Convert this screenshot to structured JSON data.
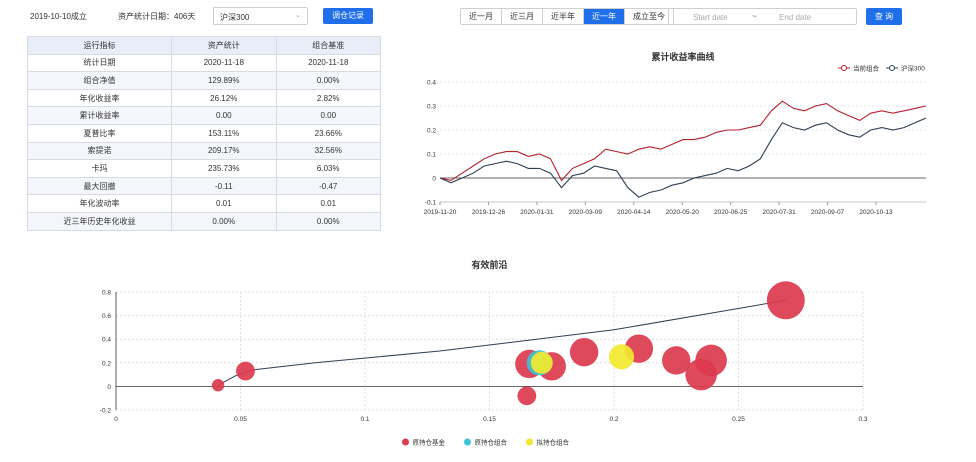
{
  "header": {
    "established": "2019-10-10成立",
    "stat_days": "资产统计日期：406天",
    "benchmark_select": "沪深300",
    "adjust_button": "调仓记录",
    "ranges": [
      "近一月",
      "近三月",
      "近半年",
      "近一年",
      "成立至今"
    ],
    "active_range": "近一年",
    "start_placeholder": "Start date",
    "separator": "~",
    "end_placeholder": "End date",
    "query_button": "查 询"
  },
  "metrics_table": {
    "headers": [
      "运行指标",
      "资产统计",
      "组合基准"
    ],
    "rows": [
      [
        "统计日期",
        "2020-11-18",
        "2020-11-18"
      ],
      [
        "组合净值",
        "129.89%",
        "0.00%"
      ],
      [
        "年化收益率",
        "26.12%",
        "2.82%"
      ],
      [
        "累计收益率",
        "0.00",
        "0.00"
      ],
      [
        "夏普比率",
        "153.11%",
        "23.66%"
      ],
      [
        "索提诺",
        "209.17%",
        "32.56%"
      ],
      [
        "卡玛",
        "235.73%",
        "6.03%"
      ],
      [
        "最大回撤",
        "-0.11",
        "-0.47"
      ],
      [
        "年化波动率",
        "0.01",
        "0.01"
      ],
      [
        "近三年历史年化收益",
        "0.00%",
        "0.00%"
      ]
    ]
  },
  "colors": {
    "accent": "#1f6feb",
    "portfolio": "#b5202e",
    "benchmark": "#2e3f55",
    "bubble_red": "#dc3a4e",
    "bubble_cyan": "#3cc3d8",
    "bubble_yellow": "#f2e92e"
  },
  "chart_data": [
    {
      "type": "line",
      "title": "累计收益率曲线",
      "x_ticks": [
        "2019-11-20",
        "2019-12-26",
        "2020-01-31",
        "2020-03-09",
        "2020-04-14",
        "2020-05-20",
        "2020-06-25",
        "2020-07-31",
        "2020-09-07",
        "2020-10-13"
      ],
      "ylim": [
        -0.1,
        0.4
      ],
      "y_ticks": [
        -0.1,
        0,
        0.1,
        0.2,
        0.3,
        0.4
      ],
      "legend_position": "top-right",
      "series": [
        {
          "name": "当前组合",
          "values": [
            0,
            -0.01,
            0.02,
            0.05,
            0.08,
            0.1,
            0.11,
            0.11,
            0.09,
            0.1,
            0.08,
            -0.01,
            0.04,
            0.06,
            0.08,
            0.12,
            0.11,
            0.1,
            0.12,
            0.13,
            0.12,
            0.14,
            0.16,
            0.16,
            0.17,
            0.19,
            0.2,
            0.2,
            0.21,
            0.22,
            0.28,
            0.32,
            0.29,
            0.28,
            0.3,
            0.31,
            0.28,
            0.26,
            0.24,
            0.27,
            0.28,
            0.27,
            0.28,
            0.29,
            0.3
          ]
        },
        {
          "name": "沪深300",
          "values": [
            0,
            -0.02,
            0,
            0.02,
            0.05,
            0.06,
            0.07,
            0.06,
            0.04,
            0.04,
            0.02,
            -0.04,
            0.01,
            0.02,
            0.05,
            0.04,
            0.03,
            -0.04,
            -0.08,
            -0.06,
            -0.05,
            -0.03,
            -0.02,
            0,
            0.01,
            0.02,
            0.04,
            0.03,
            0.05,
            0.08,
            0.16,
            0.23,
            0.21,
            0.2,
            0.22,
            0.23,
            0.2,
            0.18,
            0.17,
            0.2,
            0.21,
            0.2,
            0.21,
            0.23,
            0.25
          ]
        }
      ]
    },
    {
      "type": "scatter",
      "title": "有效前沿",
      "xlim": [
        0,
        0.3
      ],
      "ylim": [
        -0.2,
        0.8
      ],
      "x_ticks": [
        0,
        0.05,
        0.1,
        0.15,
        0.2,
        0.25,
        0.3
      ],
      "y_ticks": [
        -0.2,
        0,
        0.2,
        0.4,
        0.6,
        0.8
      ],
      "legend_position": "bottom",
      "frontier": [
        [
          0.041,
          0.01
        ],
        [
          0.048,
          0.09
        ],
        [
          0.055,
          0.14
        ],
        [
          0.08,
          0.2
        ],
        [
          0.13,
          0.3
        ],
        [
          0.2,
          0.48
        ],
        [
          0.269,
          0.73
        ]
      ],
      "series": [
        {
          "name": "原持仓基金",
          "points": [
            [
              0.041,
              0.01,
              1
            ],
            [
              0.052,
              0.13,
              2
            ],
            [
              0.165,
              -0.08,
              2
            ],
            [
              0.166,
              0.19,
              3.5
            ],
            [
              0.175,
              0.17,
              3.5
            ],
            [
              0.188,
              0.29,
              3.5
            ],
            [
              0.21,
              0.32,
              3.5
            ],
            [
              0.225,
              0.22,
              3.5
            ],
            [
              0.235,
              0.1,
              4
            ],
            [
              0.239,
              0.22,
              4
            ],
            [
              0.269,
              0.73,
              5
            ]
          ]
        },
        {
          "name": "原持仓组合",
          "points": [
            [
              0.17,
              0.2,
              3
            ]
          ]
        },
        {
          "name": "拟持仓组合",
          "points": [
            [
              0.171,
              0.2,
              2.5
            ],
            [
              0.203,
              0.25,
              3
            ]
          ]
        }
      ]
    }
  ]
}
